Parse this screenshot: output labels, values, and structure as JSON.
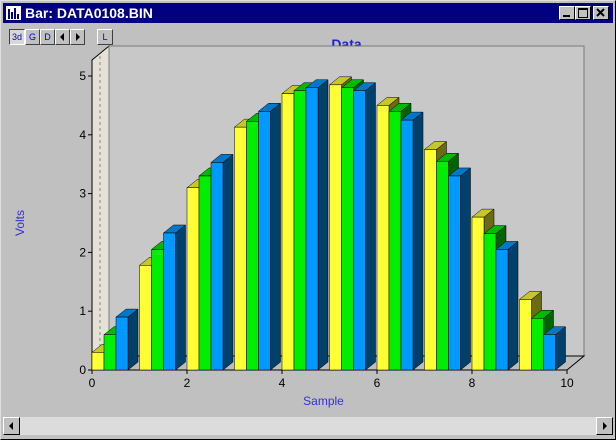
{
  "window": {
    "title": "Bar: DATA0108.BIN"
  },
  "toolbar": {
    "btn_3d": "3d",
    "btn_g": "G",
    "btn_d": "D",
    "btn_l": "L"
  },
  "colors": {
    "series1": "#ffff33",
    "series2": "#00ee00",
    "series3": "#0099ff",
    "title": "#2222cc",
    "axis_label": "#3333cc"
  },
  "chart_data": {
    "type": "bar",
    "title": "Data",
    "xlabel": "Sample",
    "ylabel": "Volts",
    "xlim": [
      0,
      10
    ],
    "ylim": [
      0,
      5
    ],
    "xticks": [
      "0",
      "2",
      "4",
      "6",
      "8",
      "10"
    ],
    "yticks": [
      "0",
      "1",
      "2",
      "3",
      "4",
      "5"
    ],
    "render": "3d",
    "grid": false,
    "groups": [
      0,
      1,
      2,
      3,
      4,
      5,
      6,
      7,
      8,
      9
    ],
    "series": [
      {
        "values": [
          0.3,
          1.78,
          3.1,
          4.13,
          4.7,
          4.85,
          4.5,
          3.75,
          2.6,
          1.2
        ]
      },
      {
        "values": [
          0.6,
          2.05,
          3.3,
          4.23,
          4.75,
          4.8,
          4.4,
          3.55,
          2.32,
          0.88
        ]
      },
      {
        "values": [
          0.9,
          2.33,
          3.53,
          4.4,
          4.8,
          4.75,
          4.25,
          3.3,
          2.05,
          0.6
        ]
      }
    ]
  }
}
